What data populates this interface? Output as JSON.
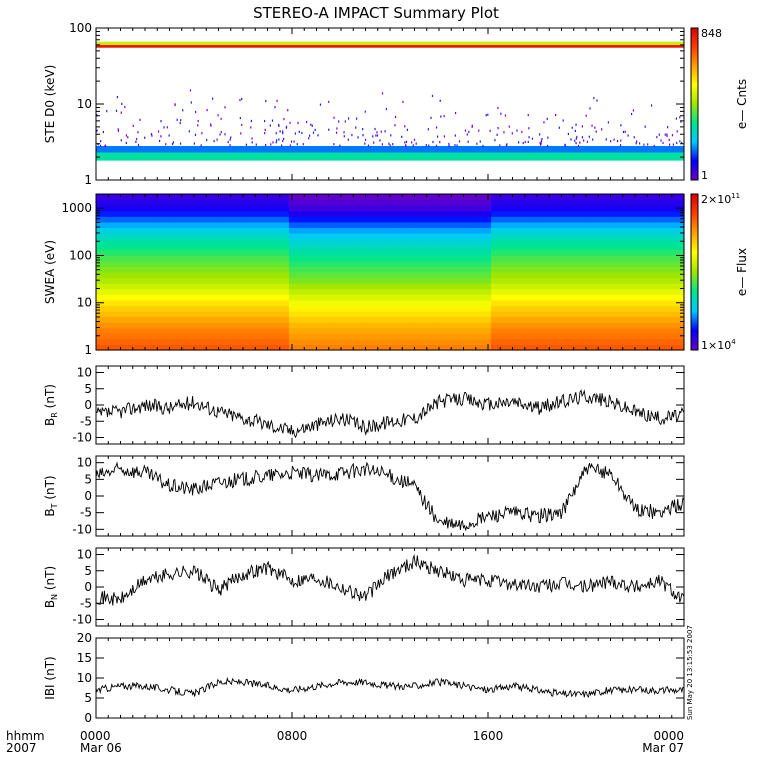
{
  "title": "STEREO-A IMPACT Summary Plot",
  "time_axis": {
    "row1_label": "hhmm",
    "row2_label": "2007",
    "ticks": [
      {
        "hour": 0,
        "time": "0000",
        "date": "Mar 06"
      },
      {
        "hour": 8,
        "time": "0800",
        "date": ""
      },
      {
        "hour": 16,
        "time": "1600",
        "date": ""
      },
      {
        "hour": 24,
        "time": "0000",
        "date": "Mar 07"
      }
    ]
  },
  "timestamp": "Sun May 20 13:15:53 2007",
  "colors": {
    "axis": "#000000",
    "trace": "#000000",
    "colorbar": [
      "#6a00c8",
      "#0000ff",
      "#00c8ff",
      "#00e68c",
      "#a0e600",
      "#ffff00",
      "#ffa000",
      "#ff3c00",
      "#dc0000"
    ]
  },
  "chart_data": [
    {
      "type": "heatmap",
      "ylabel": "STE D0 (keV)",
      "yscale": "log",
      "ylim": [
        1,
        100
      ],
      "yticks": [
        {
          "value": 1,
          "label": "1"
        },
        {
          "value": 10,
          "label": "10"
        },
        {
          "value": 100,
          "label": "100"
        }
      ],
      "xlim_hours": [
        0,
        24
      ],
      "colorbar": {
        "label": "e— Cnts",
        "max_label": "848",
        "min_label": "1",
        "scale": "log"
      },
      "bands": [
        {
          "energy_range_keV": [
            1.8,
            2.3
          ],
          "level": 0.35
        },
        {
          "energy_range_keV": [
            2.3,
            2.8
          ],
          "level": 0.2
        },
        {
          "energy_range_keV": [
            55,
            60
          ],
          "level": 0.95
        },
        {
          "energy_range_keV": [
            60,
            66
          ],
          "level": 0.55
        }
      ]
    },
    {
      "type": "heatmap",
      "ylabel": "SWEA (eV)",
      "yscale": "log",
      "ylim": [
        1,
        2000
      ],
      "yticks": [
        {
          "value": 1,
          "label": "1"
        },
        {
          "value": 10,
          "label": "10"
        },
        {
          "value": 100,
          "label": "100"
        },
        {
          "value": 1000,
          "label": "1000"
        }
      ],
      "xlim_hours": [
        0,
        24
      ],
      "colorbar": {
        "label": "e— Flux",
        "max_label": "2×10",
        "max_exp": "11",
        "min_label": "1×10",
        "min_exp": "4",
        "scale": "log"
      },
      "energy_levels_eV": [
        1,
        3,
        10,
        30,
        100,
        300,
        1000,
        2000
      ],
      "levels": [
        0.85,
        0.78,
        0.66,
        0.52,
        0.42,
        0.3,
        0.1,
        0.05
      ]
    },
    {
      "type": "line",
      "ylabel": "B",
      "ylabel_sub": "R",
      "ylabel_unit": " (nT)",
      "ylim": [
        -12,
        12
      ],
      "yticks": [
        -10,
        -5,
        0,
        5,
        10
      ],
      "x_hours": [
        0,
        1,
        2,
        3,
        4,
        5,
        6,
        7,
        8,
        9,
        10,
        11,
        12,
        13,
        14,
        15,
        16,
        17,
        18,
        19,
        20,
        21,
        22,
        23,
        24
      ],
      "values": [
        -3,
        -2,
        0,
        -1,
        1,
        -2,
        -4,
        -6,
        -8,
        -6,
        -4,
        -7,
        -5,
        -4,
        1,
        2,
        0,
        1,
        -1,
        1,
        3,
        1,
        -2,
        -4,
        -3
      ]
    },
    {
      "type": "line",
      "ylabel": "B",
      "ylabel_sub": "T",
      "ylabel_unit": " (nT)",
      "ylim": [
        -12,
        12
      ],
      "yticks": [
        -10,
        -5,
        0,
        5,
        10
      ],
      "x_hours": [
        0,
        1,
        2,
        3,
        4,
        5,
        6,
        7,
        8,
        9,
        10,
        11,
        12,
        13,
        14,
        15,
        16,
        17,
        18,
        19,
        20,
        21,
        22,
        23,
        24
      ],
      "values": [
        6,
        8,
        7,
        3,
        2,
        4,
        5,
        6,
        7,
        6,
        7,
        8,
        6,
        3,
        -8,
        -9,
        -6,
        -5,
        -6,
        -5,
        8,
        7,
        -4,
        -5,
        -2
      ]
    },
    {
      "type": "line",
      "ylabel": "B",
      "ylabel_sub": "N",
      "ylabel_unit": " (nT)",
      "ylim": [
        -12,
        12
      ],
      "yticks": [
        -10,
        -5,
        0,
        5,
        10
      ],
      "x_hours": [
        0,
        1,
        2,
        3,
        4,
        5,
        6,
        7,
        8,
        9,
        10,
        11,
        12,
        13,
        14,
        15,
        16,
        17,
        18,
        19,
        20,
        21,
        22,
        23,
        24
      ],
      "values": [
        -3,
        -4,
        2,
        4,
        5,
        -1,
        4,
        6,
        2,
        3,
        0,
        -3,
        4,
        8,
        5,
        2,
        2,
        1,
        0,
        1,
        0,
        2,
        0,
        2,
        -4
      ]
    },
    {
      "type": "line",
      "ylabel": "IBI (nT)",
      "ylim": [
        0,
        20
      ],
      "yticks": [
        0,
        5,
        10,
        15,
        20
      ],
      "x_hours": [
        0,
        1,
        2,
        3,
        4,
        5,
        6,
        7,
        8,
        9,
        10,
        11,
        12,
        13,
        14,
        15,
        16,
        17,
        18,
        19,
        20,
        21,
        22,
        23,
        24
      ],
      "values": [
        7,
        8,
        8,
        7,
        6,
        9,
        9,
        8,
        7,
        8,
        9,
        9,
        8,
        8,
        9,
        8,
        7,
        8,
        7,
        6,
        6,
        7,
        7,
        7,
        7
      ]
    }
  ]
}
